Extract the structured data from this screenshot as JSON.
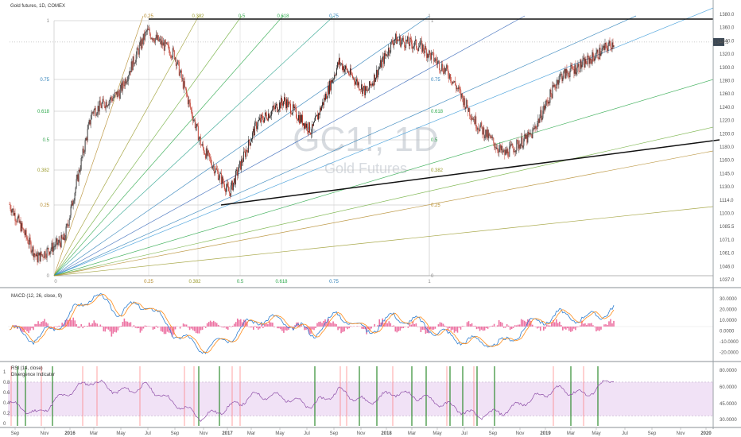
{
  "main": {
    "title": "Gold futures, 1D, COMEX",
    "watermark_symbol": "GC1!, 1D",
    "watermark_name": "Gold Futures",
    "price_badge": "1346.1",
    "y_ticks": [
      "1380.0",
      "1360.0",
      "1340.0",
      "1320.0",
      "1300.0",
      "1280.0",
      "1260.0",
      "1240.0",
      "1220.0",
      "1200.0",
      "1180.0",
      "1160.0",
      "1145.0",
      "1130.0",
      "1114.0",
      "1100.0",
      "1085.5",
      "1071.0",
      "1061.0",
      "1046.0",
      "1037.0"
    ],
    "fib_levels_left": [
      "1",
      "0.75",
      "0.618",
      "0.5",
      "0.382",
      "0.25",
      "0"
    ],
    "fib_levels_right": [
      "1",
      "0.75",
      "0.618",
      "0.5",
      "0.382",
      "0.25",
      "0"
    ],
    "fib_bottom_labels": [
      "0",
      "0.25",
      "0.382",
      "0.5",
      "0.618",
      "0.75",
      "1"
    ],
    "fib_top_labels": [
      "0.25",
      "0.382",
      "0.5",
      "0.618",
      "0.75",
      "1"
    ]
  },
  "macd": {
    "title": "MACD (12, 26, close, 9)",
    "y_ticks": [
      "30.0000",
      "20.0000",
      "10.0000",
      "0.0000",
      "-10.0000",
      "-20.0000"
    ]
  },
  "rsi": {
    "title": "RSI (14, close)",
    "subtitle": "Divergence Indicator",
    "left_ticks": [
      "1",
      "0.8",
      "0.6",
      "0.4",
      "0.2",
      "0"
    ],
    "right_ticks": [
      "80.0000",
      "60.0000",
      "45.0000",
      "30.0000"
    ]
  },
  "x_axis": {
    "labels": [
      "Sep",
      "Nov",
      "2016",
      "Mar",
      "May",
      "Jul",
      "Sep",
      "Nov",
      "2017",
      "Mar",
      "May",
      "Jul",
      "Sep",
      "Nov",
      "2018",
      "Mar",
      "May",
      "Jul",
      "Sep",
      "Nov",
      "2019",
      "Mar",
      "May",
      "Jul",
      "Sep",
      "Nov",
      "2020"
    ]
  },
  "colors": {
    "up": "#2b2b2b",
    "down": "#c0392b",
    "macd_line": "#2f7fd1",
    "signal_line": "#ff8c1a",
    "hist": "#e8508c",
    "rsi_line": "#8e4fa8",
    "rsi_band": "#f1e2f6",
    "div_bull": "#2e8b2e",
    "div_bear": "#ff6f6f"
  },
  "chart_data": [
    {
      "type": "line",
      "title": "Gold futures, 1D, COMEX",
      "x": [
        "2015-09",
        "2015-11",
        "2016-01",
        "2016-03",
        "2016-05",
        "2016-07",
        "2016-09",
        "2016-11",
        "2017-01",
        "2017-03",
        "2017-05",
        "2017-07",
        "2017-09",
        "2017-11",
        "2018-01",
        "2018-03",
        "2018-05",
        "2018-07",
        "2018-09",
        "2018-11",
        "2019-01",
        "2019-03",
        "2019-05"
      ],
      "series": [
        {
          "values": [
            1135,
            1065,
            1090,
            1255,
            1280,
            1360,
            1330,
            1210,
            1150,
            1240,
            1270,
            1230,
            1320,
            1280,
            1350,
            1340,
            1305,
            1240,
            1200,
            1225,
            1300,
            1320,
            1346
          ]
        }
      ],
      "ylim": [
        1037,
        1380
      ]
    },
    {
      "type": "line",
      "title": "MACD (12, 26, close, 9)",
      "x": [
        "2015-09",
        "2015-11",
        "2016-01",
        "2016-03",
        "2016-05",
        "2016-07",
        "2016-09",
        "2016-11",
        "2017-01",
        "2017-03",
        "2017-05",
        "2017-07",
        "2017-09",
        "2017-11",
        "2018-01",
        "2018-03",
        "2018-05",
        "2018-07",
        "2018-09",
        "2018-11",
        "2019-01",
        "2019-03",
        "2019-05"
      ],
      "series": [
        {
          "values": [
            -2,
            -10,
            5,
            25,
            12,
            18,
            -5,
            -18,
            -8,
            6,
            4,
            -6,
            10,
            -4,
            8,
            2,
            -8,
            -12,
            -14,
            3,
            9,
            6,
            14
          ]
        },
        {
          "values": [
            0,
            -8,
            0,
            18,
            15,
            14,
            2,
            -14,
            -12,
            2,
            5,
            -3,
            6,
            0,
            5,
            4,
            -4,
            -10,
            -13,
            -4,
            6,
            7,
            9
          ]
        }
      ],
      "ylim": [
        -25,
        35
      ]
    },
    {
      "type": "line",
      "title": "RSI (14, close)",
      "x": [
        "2015-09",
        "2015-11",
        "2016-01",
        "2016-03",
        "2016-05",
        "2016-07",
        "2016-09",
        "2016-11",
        "2017-01",
        "2017-03",
        "2017-05",
        "2017-07",
        "2017-09",
        "2017-11",
        "2018-01",
        "2018-03",
        "2018-05",
        "2018-07",
        "2018-09",
        "2018-11",
        "2019-01",
        "2019-03",
        "2019-05"
      ],
      "series": [
        {
          "values": [
            45,
            32,
            55,
            72,
            58,
            65,
            45,
            28,
            40,
            55,
            52,
            42,
            60,
            46,
            58,
            52,
            42,
            30,
            35,
            50,
            62,
            55,
            75
          ]
        }
      ],
      "ylim": [
        20,
        85
      ]
    }
  ]
}
